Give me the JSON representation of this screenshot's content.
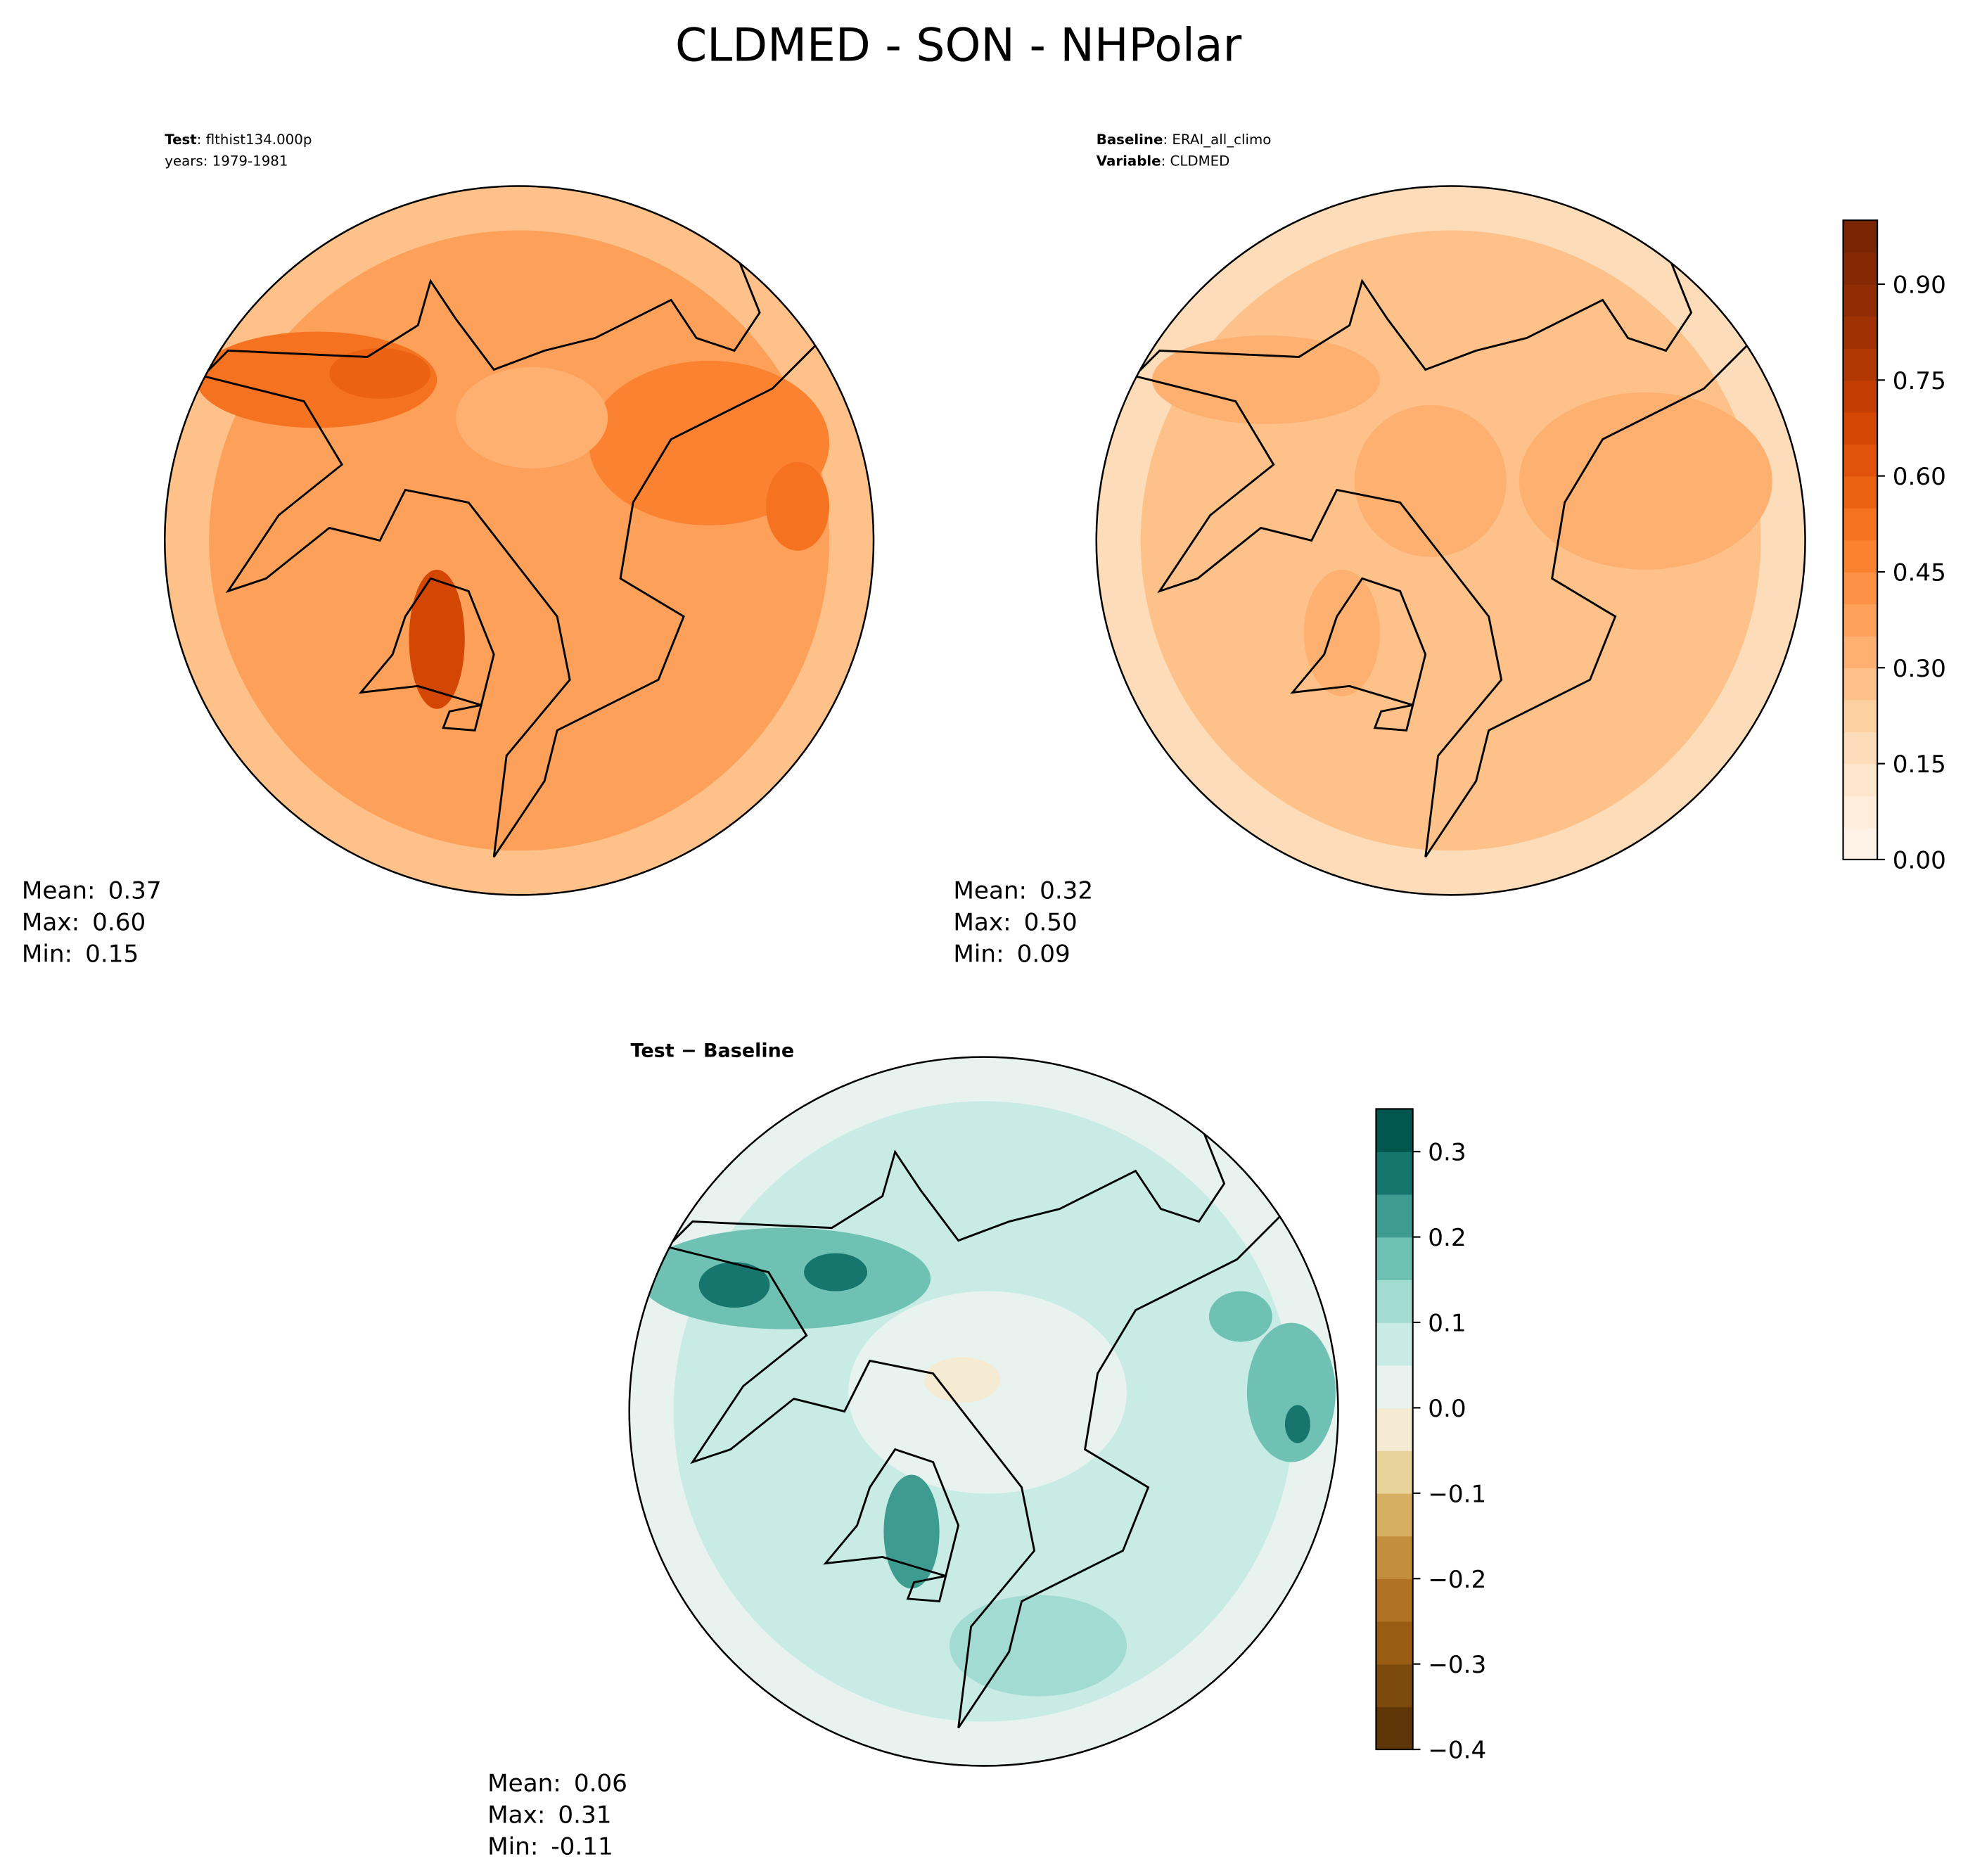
{
  "title": "CLDMED - SON - NHPolar",
  "panels": [
    {
      "header": [
        {
          "label": "Test",
          "text": ": flthist134.000p"
        },
        {
          "text": "years: 1979-1981"
        }
      ],
      "stats": [
        {
          "label": "Mean:",
          "value": "0.37"
        },
        {
          "label": "Max:",
          "value": "0.60"
        },
        {
          "label": "Min:",
          "value": "0.15"
        }
      ]
    },
    {
      "header": [
        {
          "label": "Baseline",
          "text": ": ERAI_all_climo"
        },
        {
          "label": "Variable",
          "text": ": CLDMED"
        }
      ],
      "stats": [
        {
          "label": "Mean:",
          "value": "0.32"
        },
        {
          "label": "Max:",
          "value": "0.50"
        },
        {
          "label": "Min:",
          "value": "0.09"
        }
      ]
    },
    {
      "header": [
        {
          "label": "Test − Baseline"
        }
      ],
      "stats": [
        {
          "label": "Mean:",
          "value": "0.06"
        },
        {
          "label": "Max:",
          "value": "0.31"
        },
        {
          "label": "Min:",
          "value": "-0.11"
        }
      ]
    }
  ],
  "colorbars": [
    {
      "range": [
        0,
        1
      ],
      "ticks": [
        {
          "value": 0,
          "label": "0.00"
        },
        {
          "value": 0.15,
          "label": "0.15"
        },
        {
          "value": 0.3,
          "label": "0.30"
        },
        {
          "value": 0.45,
          "label": "0.45"
        },
        {
          "value": 0.6,
          "label": "0.60"
        },
        {
          "value": 0.75,
          "label": "0.75"
        },
        {
          "value": 0.9,
          "label": "0.90"
        }
      ],
      "colors": [
        "#fff3e7",
        "#feeddb",
        "#fee6cd",
        "#fddcba",
        "#fdd0a2",
        "#fdc189",
        "#fdb070",
        "#fda05a",
        "#fd9145",
        "#fb8231",
        "#f57221",
        "#ec6213",
        "#e1530a",
        "#d44603",
        "#c23e02",
        "#b13703",
        "#a03103",
        "#912c04",
        "#852904",
        "#7a2604"
      ]
    },
    {
      "range": [
        -0.4,
        0.35
      ],
      "ticks": [
        {
          "value": -0.4,
          "label": "−0.4"
        },
        {
          "value": -0.3,
          "label": "−0.3"
        },
        {
          "value": -0.2,
          "label": "−0.2"
        },
        {
          "value": -0.1,
          "label": "−0.1"
        },
        {
          "value": 0,
          "label": "0.0"
        },
        {
          "value": 0.1,
          "label": "0.1"
        },
        {
          "value": 0.2,
          "label": "0.2"
        },
        {
          "value": 0.3,
          "label": "0.3"
        }
      ],
      "colors": [
        "#5f3607",
        "#7c4a0c",
        "#985d12",
        "#b07323",
        "#c38e3e",
        "#d6b060",
        "#e8d39a",
        "#f4ebd2",
        "#e8f2ef",
        "#c9ebe5",
        "#a1dbd1",
        "#6ec1b3",
        "#3d9b8f",
        "#16766e",
        "#01574d"
      ]
    }
  ]
}
